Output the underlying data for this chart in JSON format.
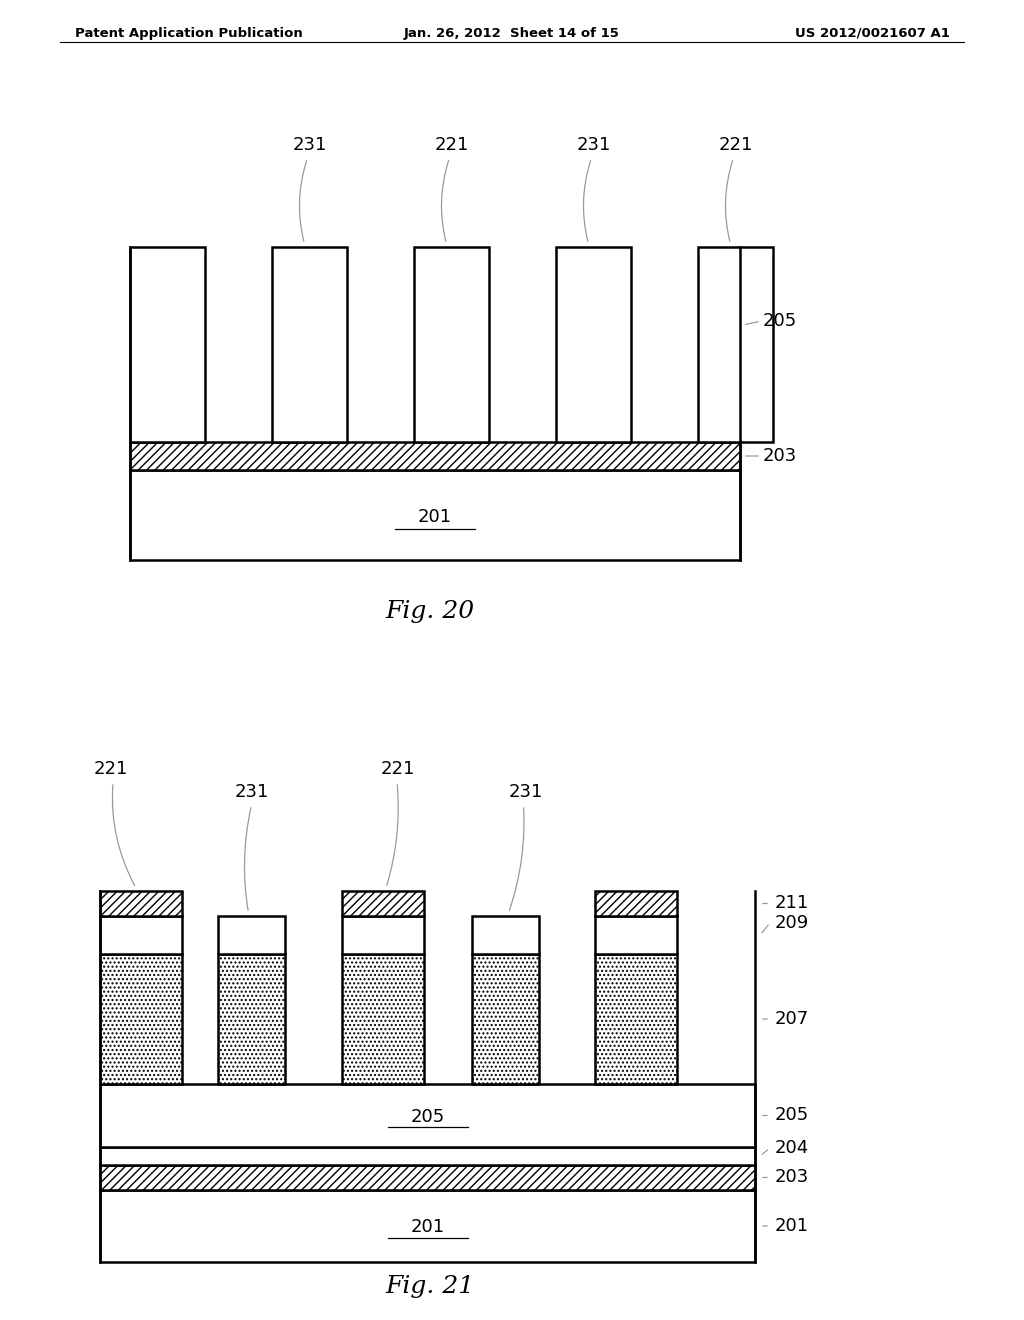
{
  "header_left": "Patent Application Publication",
  "header_mid": "Jan. 26, 2012  Sheet 14 of 15",
  "header_right": "US 2012/0021607 A1",
  "fig20_label": "Fig. 20",
  "fig21_label": "Fig. 21",
  "bg_color": "#ffffff",
  "line_color": "#000000"
}
